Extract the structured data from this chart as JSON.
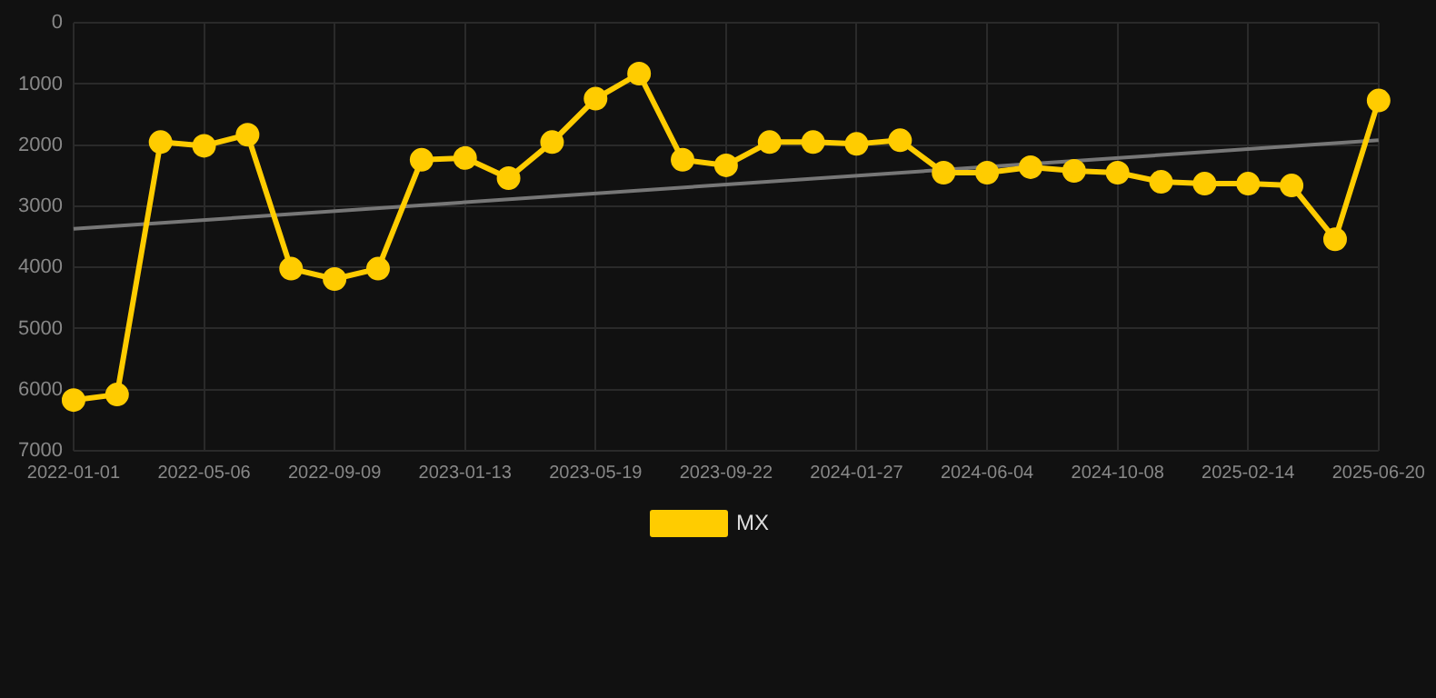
{
  "chart_data": {
    "type": "line",
    "categories": [
      "2022-01-01",
      null,
      null,
      "2022-05-06",
      null,
      null,
      "2022-09-09",
      null,
      null,
      "2023-01-13",
      null,
      null,
      "2023-05-19",
      null,
      null,
      "2023-09-22",
      null,
      null,
      "2024-01-27",
      null,
      null,
      "2024-06-04",
      null,
      null,
      "2024-10-08",
      null,
      null,
      "2025-02-14",
      null,
      null,
      "2025-06-20"
    ],
    "series": [
      {
        "name": "MX",
        "color": "#ffcc00",
        "marker": "circle",
        "values": [
          6170,
          6080,
          1950,
          2010,
          1830,
          4020,
          4190,
          4020,
          2240,
          2210,
          2540,
          1950,
          1240,
          830,
          2240,
          2330,
          1950,
          1950,
          1980,
          1920,
          2450,
          2450,
          2360,
          2420,
          2450,
          2600,
          2630,
          2630,
          2660,
          3540,
          1270
        ]
      },
      {
        "type": "line",
        "color": "#777777",
        "marker": "none",
        "values": [
          3370,
          null,
          null,
          null,
          null,
          null,
          null,
          null,
          null,
          null,
          null,
          null,
          null,
          null,
          null,
          null,
          null,
          null,
          null,
          null,
          null,
          null,
          null,
          null,
          null,
          null,
          null,
          null,
          null,
          null,
          1920
        ]
      }
    ],
    "ylim": [
      7000,
      0
    ],
    "yticks": [
      0,
      1000,
      2000,
      3000,
      4000,
      5000,
      6000,
      7000
    ],
    "grid": true,
    "legend": "bottom"
  }
}
